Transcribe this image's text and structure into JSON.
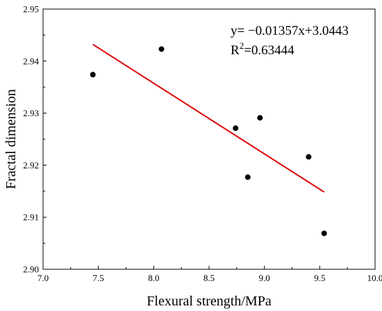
{
  "chart_data": {
    "type": "scatter",
    "xlabel": "Flexural strength/MPa",
    "ylabel": "Fractal dimension",
    "xlim": [
      7.0,
      10.0
    ],
    "ylim": [
      2.9,
      2.95
    ],
    "x_ticks": [
      "7.0",
      "7.5",
      "8.0",
      "8.5",
      "9.0",
      "9.5",
      "10.0"
    ],
    "y_ticks": [
      "2.90",
      "2.91",
      "2.92",
      "2.93",
      "2.94",
      "2.95"
    ],
    "points": [
      {
        "x": 7.45,
        "y": 2.9374
      },
      {
        "x": 8.07,
        "y": 2.9423
      },
      {
        "x": 8.74,
        "y": 2.9271
      },
      {
        "x": 8.85,
        "y": 2.9177
      },
      {
        "x": 8.96,
        "y": 2.9291
      },
      {
        "x": 9.4,
        "y": 2.9216
      },
      {
        "x": 9.54,
        "y": 2.9069
      }
    ],
    "fit_line": {
      "x_start": 7.45,
      "x_end": 9.54,
      "slope": -0.01357,
      "intercept": 3.0443,
      "color": "#e00000"
    },
    "annotation": {
      "equation": "y= −0.01357x+3.0443",
      "r2_prefix": "R",
      "r2_sup": "2",
      "r2_suffix": "=0.63444"
    },
    "grid": false,
    "marker_color": "#000000"
  }
}
